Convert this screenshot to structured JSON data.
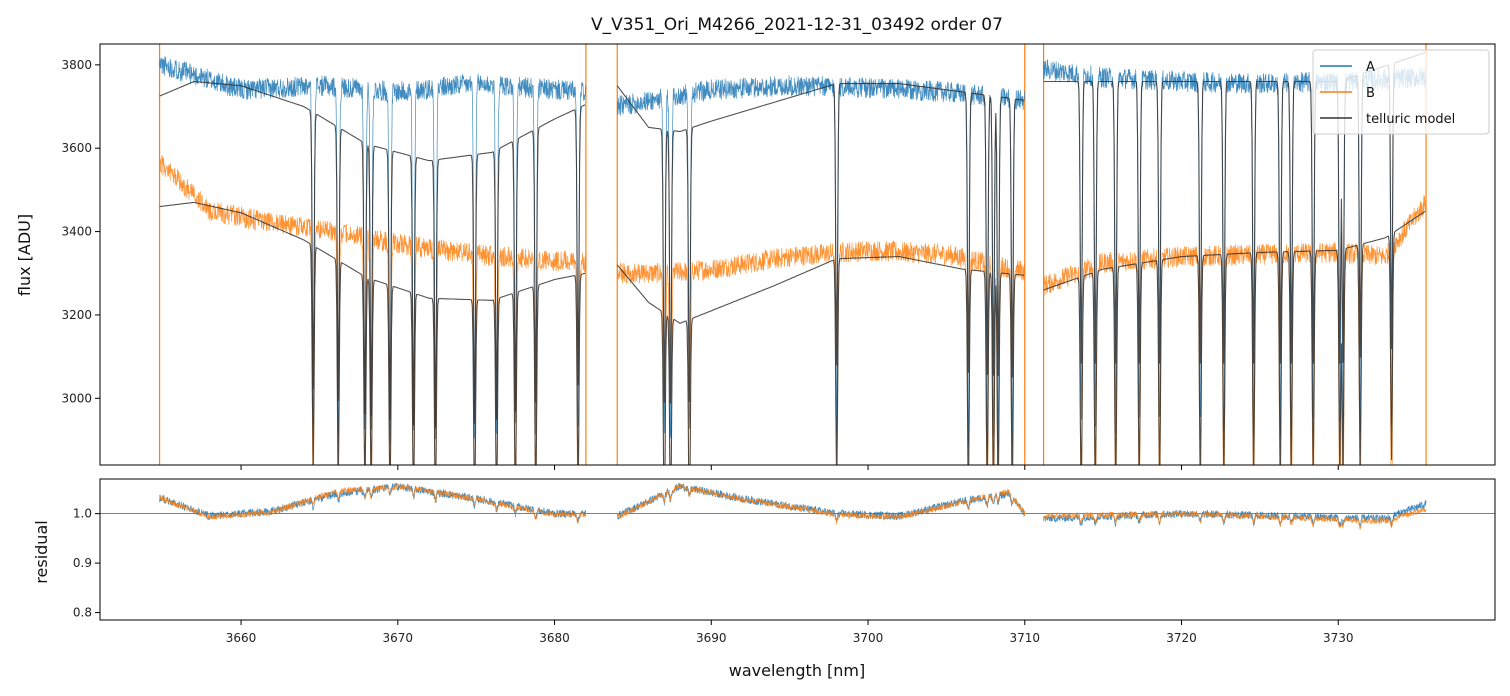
{
  "chart_data": {
    "type": "line",
    "title": "V_V351_Ori_M4266_2021-12-31_03492  order 07",
    "xlabel": "wavelength [nm]",
    "xlim": [
      3651,
      3740
    ],
    "x_ticks": [
      3660,
      3670,
      3680,
      3690,
      3700,
      3710,
      3720,
      3730
    ],
    "x_tick_labels": [
      "3660",
      "3670",
      "3680",
      "3690",
      "3700",
      "3710",
      "3720",
      "3730"
    ],
    "colors": {
      "A": "#1f77b4",
      "B": "#ff7f0e",
      "telluric": "#333333",
      "refline": "#555555"
    },
    "segments": [
      [
        3654.8,
        3682.0
      ],
      [
        3684.0,
        3710.0
      ],
      [
        3711.2,
        3735.6
      ]
    ],
    "top_panel": {
      "ylabel": "flux [ADU]",
      "ylim": [
        2840,
        3850
      ],
      "y_ticks": [
        3000,
        3200,
        3400,
        3600,
        3800
      ],
      "y_tick_labels": [
        "3000",
        "3200",
        "3400",
        "3600",
        "3800"
      ],
      "legend": {
        "location": "top-right",
        "entries": [
          {
            "label": "A",
            "series": "A"
          },
          {
            "label": "B",
            "series": "B"
          },
          {
            "label": "telluric model",
            "series": "telluric"
          }
        ]
      },
      "series": [
        {
          "name": "A",
          "continuum": [
            [
              3655,
              3800
            ],
            [
              3660,
              3740
            ],
            [
              3665,
              3750
            ],
            [
              3670,
              3735
            ],
            [
              3675,
              3755
            ],
            [
              3680,
              3740
            ],
            [
              3682,
              3735
            ],
            [
              3684,
              3700
            ],
            [
              3690,
              3740
            ],
            [
              3695,
              3750
            ],
            [
              3700,
              3745
            ],
            [
              3705,
              3735
            ],
            [
              3710,
              3715
            ],
            [
              3711.2,
              3790
            ],
            [
              3715,
              3770
            ],
            [
              3720,
              3760
            ],
            [
              3725,
              3755
            ],
            [
              3730,
              3760
            ],
            [
              3735.6,
              3770
            ]
          ],
          "noise": 25
        },
        {
          "name": "B",
          "continuum": [
            [
              3655,
              3560
            ],
            [
              3658,
              3450
            ],
            [
              3662,
              3420
            ],
            [
              3666,
              3400
            ],
            [
              3670,
              3370
            ],
            [
              3675,
              3345
            ],
            [
              3680,
              3330
            ],
            [
              3682,
              3325
            ],
            [
              3684,
              3300
            ],
            [
              3687,
              3300
            ],
            [
              3690,
              3310
            ],
            [
              3695,
              3340
            ],
            [
              3700,
              3355
            ],
            [
              3705,
              3345
            ],
            [
              3710,
              3305
            ],
            [
              3711.2,
              3270
            ],
            [
              3715,
              3325
            ],
            [
              3720,
              3340
            ],
            [
              3725,
              3345
            ],
            [
              3730,
              3350
            ],
            [
              3733,
              3340
            ],
            [
              3735.6,
              3470
            ]
          ],
          "noise": 25
        },
        {
          "name": "telluric model",
          "continuum": [
            [
              3654.8,
              3725
            ],
            [
              3657,
              3760
            ],
            [
              3660,
              3750
            ],
            [
              3664,
              3700
            ],
            [
              3668,
              3610
            ],
            [
              3672,
              3570
            ],
            [
              3676,
              3590
            ],
            [
              3680,
              3670
            ],
            [
              3682,
              3705
            ],
            [
              3684,
              3750
            ],
            [
              3686,
              3650
            ],
            [
              3688,
              3640
            ],
            [
              3690,
              3665
            ],
            [
              3694,
              3710
            ],
            [
              3698,
              3755
            ],
            [
              3702,
              3755
            ],
            [
              3706,
              3735
            ],
            [
              3710,
              3715
            ],
            [
              3711.2,
              3760
            ],
            [
              3715,
              3760
            ],
            [
              3720,
              3760
            ],
            [
              3725,
              3760
            ],
            [
              3730,
              3760
            ],
            [
              3735.6,
              3830
            ]
          ],
          "continuum_B": [
            [
              3654.8,
              3460
            ],
            [
              3657,
              3470
            ],
            [
              3660,
              3445
            ],
            [
              3664,
              3380
            ],
            [
              3668,
              3290
            ],
            [
              3672,
              3240
            ],
            [
              3676,
              3235
            ],
            [
              3680,
              3285
            ],
            [
              3682,
              3300
            ],
            [
              3684,
              3320
            ],
            [
              3686,
              3230
            ],
            [
              3688,
              3180
            ],
            [
              3690,
              3210
            ],
            [
              3694,
              3270
            ],
            [
              3698,
              3335
            ],
            [
              3702,
              3340
            ],
            [
              3706,
              3310
            ],
            [
              3710,
              3295
            ],
            [
              3711.2,
              3260
            ],
            [
              3715,
              3310
            ],
            [
              3720,
              3340
            ],
            [
              3725,
              3350
            ],
            [
              3730,
              3355
            ],
            [
              3733,
              3385
            ],
            [
              3735.6,
              3450
            ]
          ]
        }
      ],
      "absorption_lines_nm": [
        3664.6,
        3666.2,
        3667.9,
        3668.3,
        3669.5,
        3671.0,
        3672.4,
        3674.9,
        3676.3,
        3677.5,
        3678.8,
        3681.5,
        3687.0,
        3687.4,
        3688.6,
        3698.0,
        3706.4,
        3707.6,
        3708.0,
        3708.3,
        3709.2,
        3713.6,
        3714.5,
        3715.8,
        3717.3,
        3718.6,
        3721.2,
        3722.7,
        3724.6,
        3726.3,
        3727.0,
        3728.4,
        3730.1,
        3730.3,
        3731.4,
        3733.4
      ]
    },
    "bottom_panel": {
      "ylabel": "residual",
      "ylim": [
        0.785,
        1.07
      ],
      "y_ticks": [
        0.8,
        0.9,
        1.0
      ],
      "y_tick_labels": [
        "0.8",
        "0.9",
        "1.0"
      ],
      "reference_line": 1.0,
      "series": [
        {
          "name": "A",
          "continuum": [
            [
              3655,
              1.03
            ],
            [
              3658,
              0.995
            ],
            [
              3662,
              1.005
            ],
            [
              3666,
              1.04
            ],
            [
              3670,
              1.055
            ],
            [
              3675,
              1.03
            ],
            [
              3680,
              1.0
            ],
            [
              3682,
              1.0
            ],
            [
              3684,
              0.995
            ],
            [
              3688,
              1.055
            ],
            [
              3692,
              1.03
            ],
            [
              3698,
              1.0
            ],
            [
              3702,
              0.995
            ],
            [
              3706,
              1.025
            ],
            [
              3709,
              1.04
            ],
            [
              3710,
              1.0
            ],
            [
              3711.2,
              0.99
            ],
            [
              3720,
              1.0
            ],
            [
              3733,
              0.99
            ],
            [
              3735.6,
              1.02
            ]
          ],
          "noise": 0.008
        },
        {
          "name": "B",
          "continuum": [
            [
              3655,
              1.03
            ],
            [
              3658,
              0.993
            ],
            [
              3662,
              1.003
            ],
            [
              3666,
              1.045
            ],
            [
              3670,
              1.055
            ],
            [
              3675,
              1.03
            ],
            [
              3680,
              0.998
            ],
            [
              3682,
              0.998
            ],
            [
              3684,
              0.993
            ],
            [
              3688,
              1.055
            ],
            [
              3692,
              1.028
            ],
            [
              3698,
              0.998
            ],
            [
              3702,
              0.993
            ],
            [
              3706,
              1.023
            ],
            [
              3709,
              1.045
            ],
            [
              3710,
              1.0
            ],
            [
              3711.2,
              0.995
            ],
            [
              3720,
              1.0
            ],
            [
              3733,
              0.985
            ],
            [
              3735.6,
              1.01
            ]
          ],
          "noise": 0.006
        }
      ]
    }
  }
}
